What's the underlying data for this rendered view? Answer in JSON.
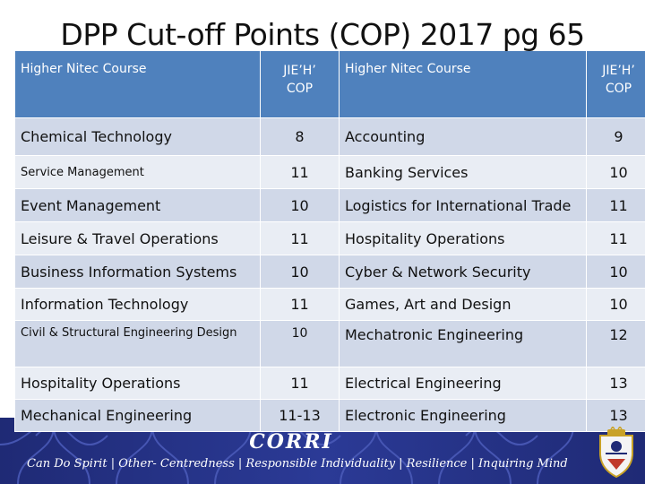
{
  "title": "DPP Cut-off Points (COP) 2017 pg 65",
  "headers": {
    "course_left": "Higher Nitec Course",
    "cop_left_line1": "JIE’H’",
    "cop_left_line2": "COP",
    "course_right": "Higher Nitec Course",
    "cop_right_line1": "JIE’H’",
    "cop_right_line2": "COP"
  },
  "rows": [
    {
      "c1": "Chemical Technology",
      "p1": "8",
      "c2": "Accounting",
      "p2": "9"
    },
    {
      "c1": "Service Management",
      "p1": "11",
      "c2": "Banking Services",
      "p2": "10"
    },
    {
      "c1": "Event Management",
      "p1": "10",
      "c2": "Logistics for International Trade",
      "p2": "11"
    },
    {
      "c1": "Leisure & Travel Operations",
      "p1": "11",
      "c2": "Hospitality Operations",
      "p2": "11"
    },
    {
      "c1": "Business Information Systems",
      "p1": "10",
      "c2": "Cyber & Network Security",
      "p2": "10"
    },
    {
      "c1": "Information Technology",
      "p1": "11",
      "c2": "Games, Art and Design",
      "p2": "10"
    },
    {
      "c1": "Civil & Structural Engineering Design",
      "p1": "10",
      "c2": "Mechatronic Engineering",
      "p2": "12"
    },
    {
      "c1": "Hospitality Operations",
      "p1": "11",
      "c2": "Electrical Engineering",
      "p2": "13"
    },
    {
      "c1": "Mechanical Engineering",
      "p1": "11-13",
      "c2": "Electronic  Engineering",
      "p2": "13"
    }
  ],
  "banner": {
    "name": "CORRI",
    "motto": "Can Do Spirit | Other- Centredness | Responsible Individuality | Resilience | Inquiring Mind"
  },
  "colors": {
    "header_bg": "#4f81bd",
    "row_odd": "#d0d8e8",
    "row_even": "#e9edf4",
    "banner_bg": "#2b3a96"
  }
}
